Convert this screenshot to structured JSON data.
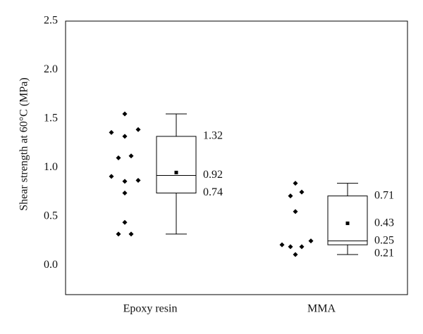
{
  "chart_data": {
    "type": "box",
    "ylabel": "Shear strength at 60°C (MPa)",
    "categories": [
      "Epoxy resin",
      "MMA"
    ],
    "ylim": [
      -0.3,
      2.5
    ],
    "yticks": [
      {
        "value": 0,
        "label": "0.0"
      },
      0.5,
      {
        "value": 1,
        "label": "1.0"
      },
      1.5,
      {
        "value": 2,
        "label": "2.0"
      },
      2.5
    ],
    "color": "#000000",
    "boxes": [
      {
        "whislo": 0.32,
        "q1": 0.74,
        "med": 0.92,
        "q3": 1.32,
        "whishi": 1.55,
        "mean": 0.95,
        "labels": [
          "q3",
          "med",
          "q1"
        ]
      },
      {
        "whislo": 0.11,
        "q1": 0.21,
        "med": 0.25,
        "q3": 0.71,
        "whishi": 0.84,
        "mean": 0.43,
        "labels": [
          "q3",
          "mean",
          "med",
          "q1"
        ]
      }
    ],
    "points": [
      [
        1.55,
        1.36,
        1.32,
        1.39,
        1.1,
        1.12,
        0.91,
        0.86,
        0.87,
        0.74,
        0.44,
        0.32,
        0.32
      ],
      [
        0.84,
        0.75,
        0.71,
        0.55,
        0.21,
        0.19,
        0.19,
        0.11,
        0.25
      ]
    ]
  }
}
